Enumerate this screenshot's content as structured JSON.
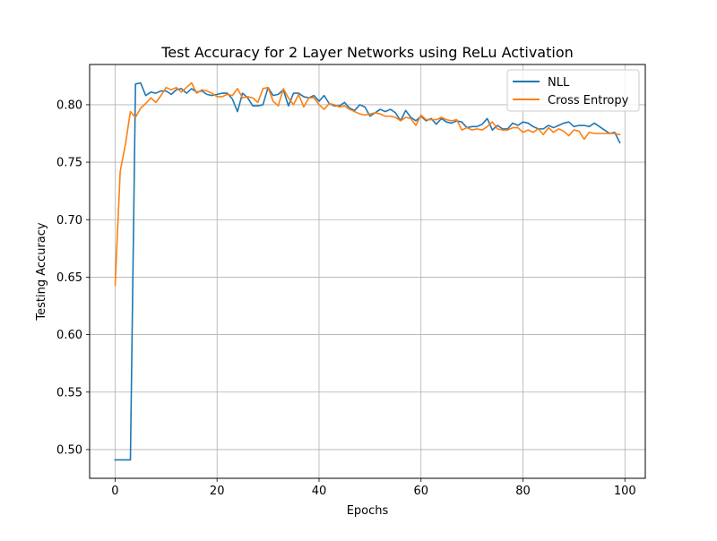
{
  "chart_data": {
    "type": "line",
    "title": "Test Accuracy for 2 Layer Networks using ReLu Activation",
    "xlabel": "Epochs",
    "ylabel": "Testing Accuracy",
    "xlim": [
      -5,
      104
    ],
    "ylim": [
      0.475,
      0.835
    ],
    "xticks": [
      0,
      20,
      40,
      60,
      80,
      100
    ],
    "xtick_labels": [
      "0",
      "20",
      "40",
      "60",
      "80",
      "100"
    ],
    "yticks": [
      0.5,
      0.55,
      0.6,
      0.65,
      0.7,
      0.75,
      0.8
    ],
    "ytick_labels": [
      "0.50",
      "0.55",
      "0.60",
      "0.65",
      "0.70",
      "0.75",
      "0.80"
    ],
    "grid": true,
    "legend_position": "top-right",
    "x": [
      0,
      1,
      2,
      3,
      4,
      5,
      6,
      7,
      8,
      9,
      10,
      11,
      12,
      13,
      14,
      15,
      16,
      17,
      18,
      19,
      20,
      21,
      22,
      23,
      24,
      25,
      26,
      27,
      28,
      29,
      30,
      31,
      32,
      33,
      34,
      35,
      36,
      37,
      38,
      39,
      40,
      41,
      42,
      43,
      44,
      45,
      46,
      47,
      48,
      49,
      50,
      51,
      52,
      53,
      54,
      55,
      56,
      57,
      58,
      59,
      60,
      61,
      62,
      63,
      64,
      65,
      66,
      67,
      68,
      69,
      70,
      71,
      72,
      73,
      74,
      75,
      76,
      77,
      78,
      79,
      80,
      81,
      82,
      83,
      84,
      85,
      86,
      87,
      88,
      89,
      90,
      91,
      92,
      93,
      94,
      95,
      96,
      97,
      98,
      99
    ],
    "series": [
      {
        "name": "NLL",
        "color": "#1f77b4",
        "values": [
          0.491,
          0.491,
          0.491,
          0.491,
          0.818,
          0.819,
          0.808,
          0.811,
          0.81,
          0.812,
          0.812,
          0.809,
          0.813,
          0.814,
          0.81,
          0.814,
          0.811,
          0.812,
          0.809,
          0.808,
          0.809,
          0.81,
          0.81,
          0.805,
          0.794,
          0.81,
          0.806,
          0.799,
          0.799,
          0.8,
          0.815,
          0.808,
          0.809,
          0.813,
          0.799,
          0.81,
          0.81,
          0.807,
          0.806,
          0.808,
          0.803,
          0.808,
          0.801,
          0.799,
          0.799,
          0.802,
          0.797,
          0.795,
          0.8,
          0.798,
          0.79,
          0.793,
          0.796,
          0.794,
          0.796,
          0.793,
          0.786,
          0.795,
          0.789,
          0.786,
          0.79,
          0.786,
          0.788,
          0.783,
          0.788,
          0.785,
          0.784,
          0.786,
          0.785,
          0.78,
          0.781,
          0.781,
          0.783,
          0.788,
          0.778,
          0.782,
          0.779,
          0.779,
          0.784,
          0.782,
          0.785,
          0.784,
          0.781,
          0.779,
          0.779,
          0.782,
          0.78,
          0.782,
          0.784,
          0.785,
          0.781,
          0.782,
          0.782,
          0.781,
          0.784,
          0.781,
          0.778,
          0.775,
          0.776,
          0.767
        ]
      },
      {
        "name": "Cross Entropy",
        "color": "#ff7f0e",
        "values": [
          0.643,
          0.742,
          0.765,
          0.794,
          0.789,
          0.797,
          0.801,
          0.806,
          0.802,
          0.808,
          0.815,
          0.813,
          0.815,
          0.811,
          0.815,
          0.819,
          0.81,
          0.813,
          0.812,
          0.81,
          0.807,
          0.807,
          0.809,
          0.808,
          0.814,
          0.806,
          0.807,
          0.806,
          0.802,
          0.814,
          0.815,
          0.803,
          0.799,
          0.814,
          0.806,
          0.8,
          0.809,
          0.798,
          0.806,
          0.806,
          0.8,
          0.796,
          0.801,
          0.8,
          0.798,
          0.799,
          0.796,
          0.794,
          0.792,
          0.791,
          0.792,
          0.793,
          0.792,
          0.79,
          0.79,
          0.789,
          0.786,
          0.789,
          0.788,
          0.782,
          0.791,
          0.787,
          0.787,
          0.787,
          0.789,
          0.787,
          0.786,
          0.787,
          0.778,
          0.78,
          0.778,
          0.779,
          0.778,
          0.781,
          0.785,
          0.779,
          0.778,
          0.778,
          0.78,
          0.78,
          0.776,
          0.778,
          0.776,
          0.779,
          0.774,
          0.78,
          0.776,
          0.779,
          0.777,
          0.773,
          0.778,
          0.777,
          0.77,
          0.776,
          0.775,
          0.775,
          0.775,
          0.775,
          0.775,
          0.774
        ]
      }
    ]
  }
}
